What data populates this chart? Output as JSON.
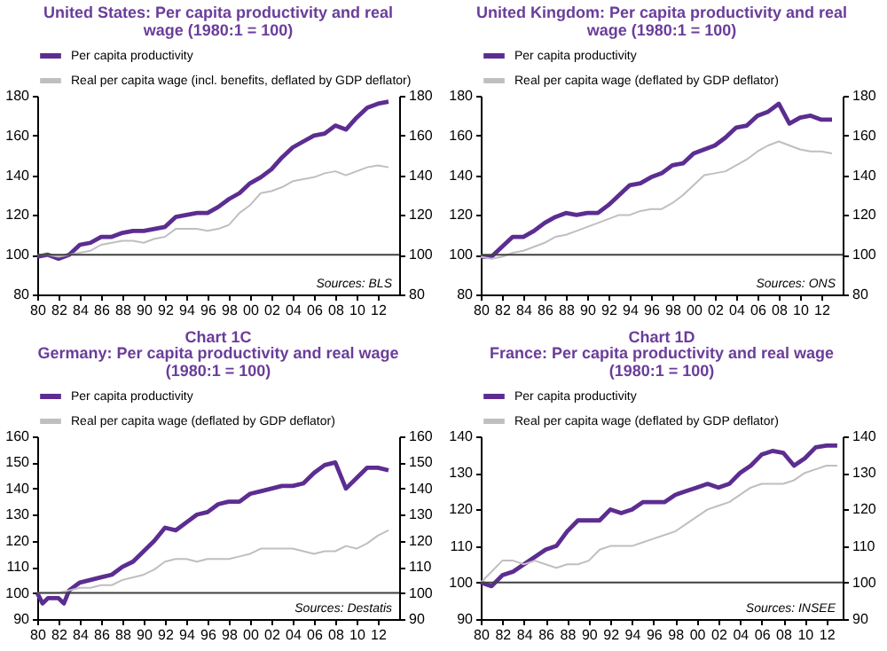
{
  "chart_data": [
    {
      "type": "line",
      "title": "United States: Per capita productivity and real wage (1980:1 = 100)",
      "x": [
        1980,
        1981,
        1982,
        1983,
        1984,
        1985,
        1986,
        1987,
        1988,
        1989,
        1990,
        1991,
        1992,
        1993,
        1994,
        1995,
        1996,
        1997,
        1998,
        1999,
        2000,
        2001,
        2002,
        2003,
        2004,
        2005,
        2006,
        2007,
        2008,
        2009,
        2010,
        2011,
        2012,
        2013
      ],
      "series": [
        {
          "name": "Per capita productivity",
          "color": "#5c2d91",
          "values": [
            99,
            100,
            98,
            100,
            105,
            106,
            109,
            109,
            111,
            112,
            112,
            113,
            114,
            119,
            120,
            121,
            121,
            124,
            128,
            131,
            136,
            139,
            143,
            149,
            154,
            157,
            160,
            161,
            165,
            163,
            169,
            174,
            176,
            177
          ]
        },
        {
          "name": "Real per capita wage (incl. benefits, deflated by GDP deflator)",
          "color": "#bfbfbf",
          "values": [
            100,
            100,
            99,
            100,
            101,
            102,
            105,
            106,
            107,
            107,
            106,
            108,
            109,
            113,
            113,
            113,
            112,
            113,
            115,
            121,
            125,
            131,
            132,
            134,
            137,
            138,
            139,
            141,
            142,
            140,
            142,
            144,
            145,
            144
          ]
        }
      ],
      "xlim": [
        1980,
        2014
      ],
      "xticks": [
        {
          "value": 1980,
          "label": "80"
        },
        {
          "value": 1982,
          "label": "82"
        },
        {
          "value": 1984,
          "label": "84"
        },
        {
          "value": 1986,
          "label": "86"
        },
        {
          "value": 1988,
          "label": "88"
        },
        {
          "value": 1990,
          "label": "90"
        },
        {
          "value": 1992,
          "label": "92"
        },
        {
          "value": 1994,
          "label": "94"
        },
        {
          "value": 1996,
          "label": "96"
        },
        {
          "value": 1998,
          "label": "98"
        },
        {
          "value": 2000,
          "label": "00"
        },
        {
          "value": 2002,
          "label": "02"
        },
        {
          "value": 2004,
          "label": "04"
        },
        {
          "value": 2006,
          "label": "06"
        },
        {
          "value": 2008,
          "label": "08"
        },
        {
          "value": 2010,
          "label": "10"
        },
        {
          "value": 2012,
          "label": "12"
        }
      ],
      "ylim": [
        80,
        180
      ],
      "yticks": [
        80,
        100,
        120,
        140,
        160,
        180
      ],
      "y2lim": [
        80,
        180
      ],
      "y2ticks": [
        80,
        100,
        120,
        140,
        160,
        180
      ],
      "ref_lines": [
        {
          "axis": "y",
          "value": 100,
          "color": "#404040"
        }
      ],
      "annotations": [
        "Sources: BLS"
      ],
      "legend": "top",
      "grid": false
    },
    {
      "type": "line",
      "title": "United Kingdom: Per capita productivity and real wage (1980:1 = 100)",
      "x": [
        1980,
        1981,
        1982,
        1983,
        1984,
        1985,
        1986,
        1987,
        1988,
        1989,
        1990,
        1991,
        1992,
        1993,
        1994,
        1995,
        1996,
        1997,
        1998,
        1999,
        2000,
        2001,
        2002,
        2003,
        2004,
        2005,
        2006,
        2007,
        2008,
        2009,
        2010,
        2011,
        2012,
        2013
      ],
      "series": [
        {
          "name": "Per capita productivity",
          "color": "#5c2d91",
          "values": [
            99,
            99,
            104,
            109,
            109,
            112,
            116,
            119,
            121,
            120,
            121,
            121,
            125,
            130,
            135,
            136,
            139,
            141,
            145,
            146,
            151,
            153,
            155,
            159,
            164,
            165,
            170,
            172,
            176,
            166,
            169,
            170,
            168,
            168
          ]
        },
        {
          "name": "Real per capita wage (deflated by GDP deflator)",
          "color": "#bfbfbf",
          "values": [
            99,
            98,
            99,
            101,
            102,
            104,
            106,
            109,
            110,
            112,
            114,
            116,
            118,
            120,
            120,
            122,
            123,
            123,
            126,
            130,
            135,
            140,
            141,
            142,
            145,
            148,
            152,
            155,
            157,
            155,
            153,
            152,
            152,
            151
          ]
        }
      ],
      "xlim": [
        1980,
        2014
      ],
      "xticks": [
        {
          "value": 1980,
          "label": "80"
        },
        {
          "value": 1982,
          "label": "82"
        },
        {
          "value": 1984,
          "label": "84"
        },
        {
          "value": 1986,
          "label": "86"
        },
        {
          "value": 1988,
          "label": "88"
        },
        {
          "value": 1990,
          "label": "90"
        },
        {
          "value": 1992,
          "label": "92"
        },
        {
          "value": 1994,
          "label": "94"
        },
        {
          "value": 1996,
          "label": "96"
        },
        {
          "value": 1998,
          "label": "98"
        },
        {
          "value": 2000,
          "label": "00"
        },
        {
          "value": 2002,
          "label": "02"
        },
        {
          "value": 2004,
          "label": "04"
        },
        {
          "value": 2006,
          "label": "06"
        },
        {
          "value": 2008,
          "label": "08"
        },
        {
          "value": 2010,
          "label": "10"
        },
        {
          "value": 2012,
          "label": "12"
        }
      ],
      "ylim": [
        80,
        180
      ],
      "yticks": [
        80,
        100,
        120,
        140,
        160,
        180
      ],
      "y2lim": [
        80,
        180
      ],
      "y2ticks": [
        80,
        100,
        120,
        140,
        160,
        180
      ],
      "ref_lines": [
        {
          "axis": "y",
          "value": 100,
          "color": "#404040"
        }
      ],
      "annotations": [
        "Sources: ONS"
      ],
      "legend": "top",
      "grid": false
    },
    {
      "type": "line",
      "title": "Chart 1C",
      "subtitle": "Germany: Per capita productivity and real wage (1980:1 = 100)",
      "x": [
        1980,
        1981,
        1982,
        1983,
        1984,
        1985,
        1986,
        1987,
        1988,
        1989,
        1990,
        1991,
        1992,
        1993,
        1994,
        1995,
        1996,
        1997,
        1998,
        1999,
        2000,
        2001,
        2002,
        2003,
        2004,
        2005,
        2006,
        2007,
        2008,
        2009,
        2010,
        2011,
        2012,
        2013
      ],
      "series": [
        {
          "name": "Per capita productivity",
          "color": "#5c2d91",
          "x": [
            1980,
            1980.5,
            1981,
            1982,
            1982.5,
            1983,
            1984,
            1985,
            1986,
            1987,
            1988,
            1989,
            1990,
            1991,
            1992,
            1993,
            1994,
            1995,
            1996,
            1997,
            1998,
            1999,
            2000,
            2001,
            2002,
            2003,
            2004,
            2005,
            2006,
            2007,
            2008,
            2009,
            2010,
            2011,
            2012,
            2013
          ],
          "values": [
            100,
            96,
            98,
            98,
            96,
            101,
            104,
            105,
            106,
            107,
            110,
            112,
            116,
            120,
            125,
            124,
            127,
            130,
            131,
            134,
            135,
            135,
            138,
            139,
            140,
            141,
            141,
            142,
            146,
            149,
            150,
            140,
            144,
            148,
            148,
            147
          ]
        },
        {
          "name": "Real per capita wage (deflated by GDP deflator)",
          "color": "#bfbfbf",
          "values": [
            100,
            100,
            100,
            101,
            102,
            102,
            103,
            103,
            105,
            106,
            107,
            109,
            112,
            113,
            113,
            112,
            113,
            113,
            113,
            114,
            115,
            117,
            117,
            117,
            117,
            116,
            115,
            116,
            116,
            118,
            117,
            119,
            122,
            124
          ]
        }
      ],
      "xlim": [
        1980,
        2014
      ],
      "xticks": [
        {
          "value": 1980,
          "label": "80"
        },
        {
          "value": 1982,
          "label": "82"
        },
        {
          "value": 1984,
          "label": "84"
        },
        {
          "value": 1986,
          "label": "86"
        },
        {
          "value": 1988,
          "label": "88"
        },
        {
          "value": 1990,
          "label": "90"
        },
        {
          "value": 1992,
          "label": "92"
        },
        {
          "value": 1994,
          "label": "94"
        },
        {
          "value": 1996,
          "label": "96"
        },
        {
          "value": 1998,
          "label": "98"
        },
        {
          "value": 2000,
          "label": "00"
        },
        {
          "value": 2002,
          "label": "02"
        },
        {
          "value": 2004,
          "label": "04"
        },
        {
          "value": 2006,
          "label": "06"
        },
        {
          "value": 2008,
          "label": "08"
        },
        {
          "value": 2010,
          "label": "10"
        },
        {
          "value": 2012,
          "label": "12"
        }
      ],
      "ylim": [
        90,
        160
      ],
      "yticks": [
        90,
        100,
        110,
        120,
        130,
        140,
        150,
        160
      ],
      "y2lim": [
        90,
        160
      ],
      "y2ticks": [
        90,
        100,
        110,
        120,
        130,
        140,
        150,
        160
      ],
      "ref_lines": [
        {
          "axis": "y",
          "value": 100,
          "color": "#404040"
        }
      ],
      "annotations": [
        "Sources: Destatis"
      ],
      "legend": "top",
      "grid": false
    },
    {
      "type": "line",
      "title": "Chart 1D",
      "subtitle": "France: Per capita productivity and real wage (1980:1 = 100)",
      "x": [
        1980,
        1981,
        1982,
        1983,
        1984,
        1985,
        1986,
        1987,
        1988,
        1989,
        1990,
        1991,
        1992,
        1993,
        1994,
        1995,
        1996,
        1997,
        1998,
        1999,
        2000,
        2001,
        2002,
        2003,
        2004,
        2005,
        2006,
        2007,
        2008,
        2009,
        2010,
        2011,
        2012,
        2013
      ],
      "series": [
        {
          "name": "Per capita productivity",
          "color": "#5c2d91",
          "values": [
            100,
            99,
            102,
            103,
            105,
            107,
            109,
            110,
            114,
            117,
            117,
            117,
            120,
            119,
            120,
            122,
            122,
            122,
            124,
            125,
            126,
            127,
            126,
            127,
            130,
            132,
            135,
            136,
            135.5,
            132,
            134,
            137,
            137.5,
            137.5
          ]
        },
        {
          "name": "Real per capita wage (deflated by GDP deflator)",
          "color": "#bfbfbf",
          "values": [
            100,
            103,
            106,
            106,
            105,
            106,
            105,
            104,
            105,
            105,
            106,
            109,
            110,
            110,
            110,
            111,
            112,
            113,
            114,
            116,
            118,
            120,
            121,
            122,
            124,
            126,
            127,
            127,
            127,
            128,
            130,
            131,
            132,
            132
          ]
        }
      ],
      "xlim": [
        1980,
        2013.5
      ],
      "xticks": [
        {
          "value": 1980,
          "label": "80"
        },
        {
          "value": 1982,
          "label": "82"
        },
        {
          "value": 1984,
          "label": "84"
        },
        {
          "value": 1986,
          "label": "86"
        },
        {
          "value": 1988,
          "label": "88"
        },
        {
          "value": 1990,
          "label": "90"
        },
        {
          "value": 1992,
          "label": "92"
        },
        {
          "value": 1994,
          "label": "94"
        },
        {
          "value": 1996,
          "label": "96"
        },
        {
          "value": 1998,
          "label": "98"
        },
        {
          "value": 2000,
          "label": "00"
        },
        {
          "value": 2002,
          "label": "02"
        },
        {
          "value": 2004,
          "label": "04"
        },
        {
          "value": 2006,
          "label": "06"
        },
        {
          "value": 2008,
          "label": "08"
        },
        {
          "value": 2010,
          "label": "10"
        },
        {
          "value": 2012,
          "label": "12"
        }
      ],
      "ylim": [
        90,
        140
      ],
      "yticks": [
        90,
        100,
        110,
        120,
        130,
        140
      ],
      "y2lim": [
        90,
        140
      ],
      "y2ticks": [
        90,
        100,
        110,
        120,
        130,
        140
      ],
      "ref_lines": [
        {
          "axis": "y",
          "value": 100,
          "color": "#404040"
        }
      ],
      "annotations": [
        "Sources: INSEE"
      ],
      "legend": "top",
      "grid": false
    }
  ]
}
